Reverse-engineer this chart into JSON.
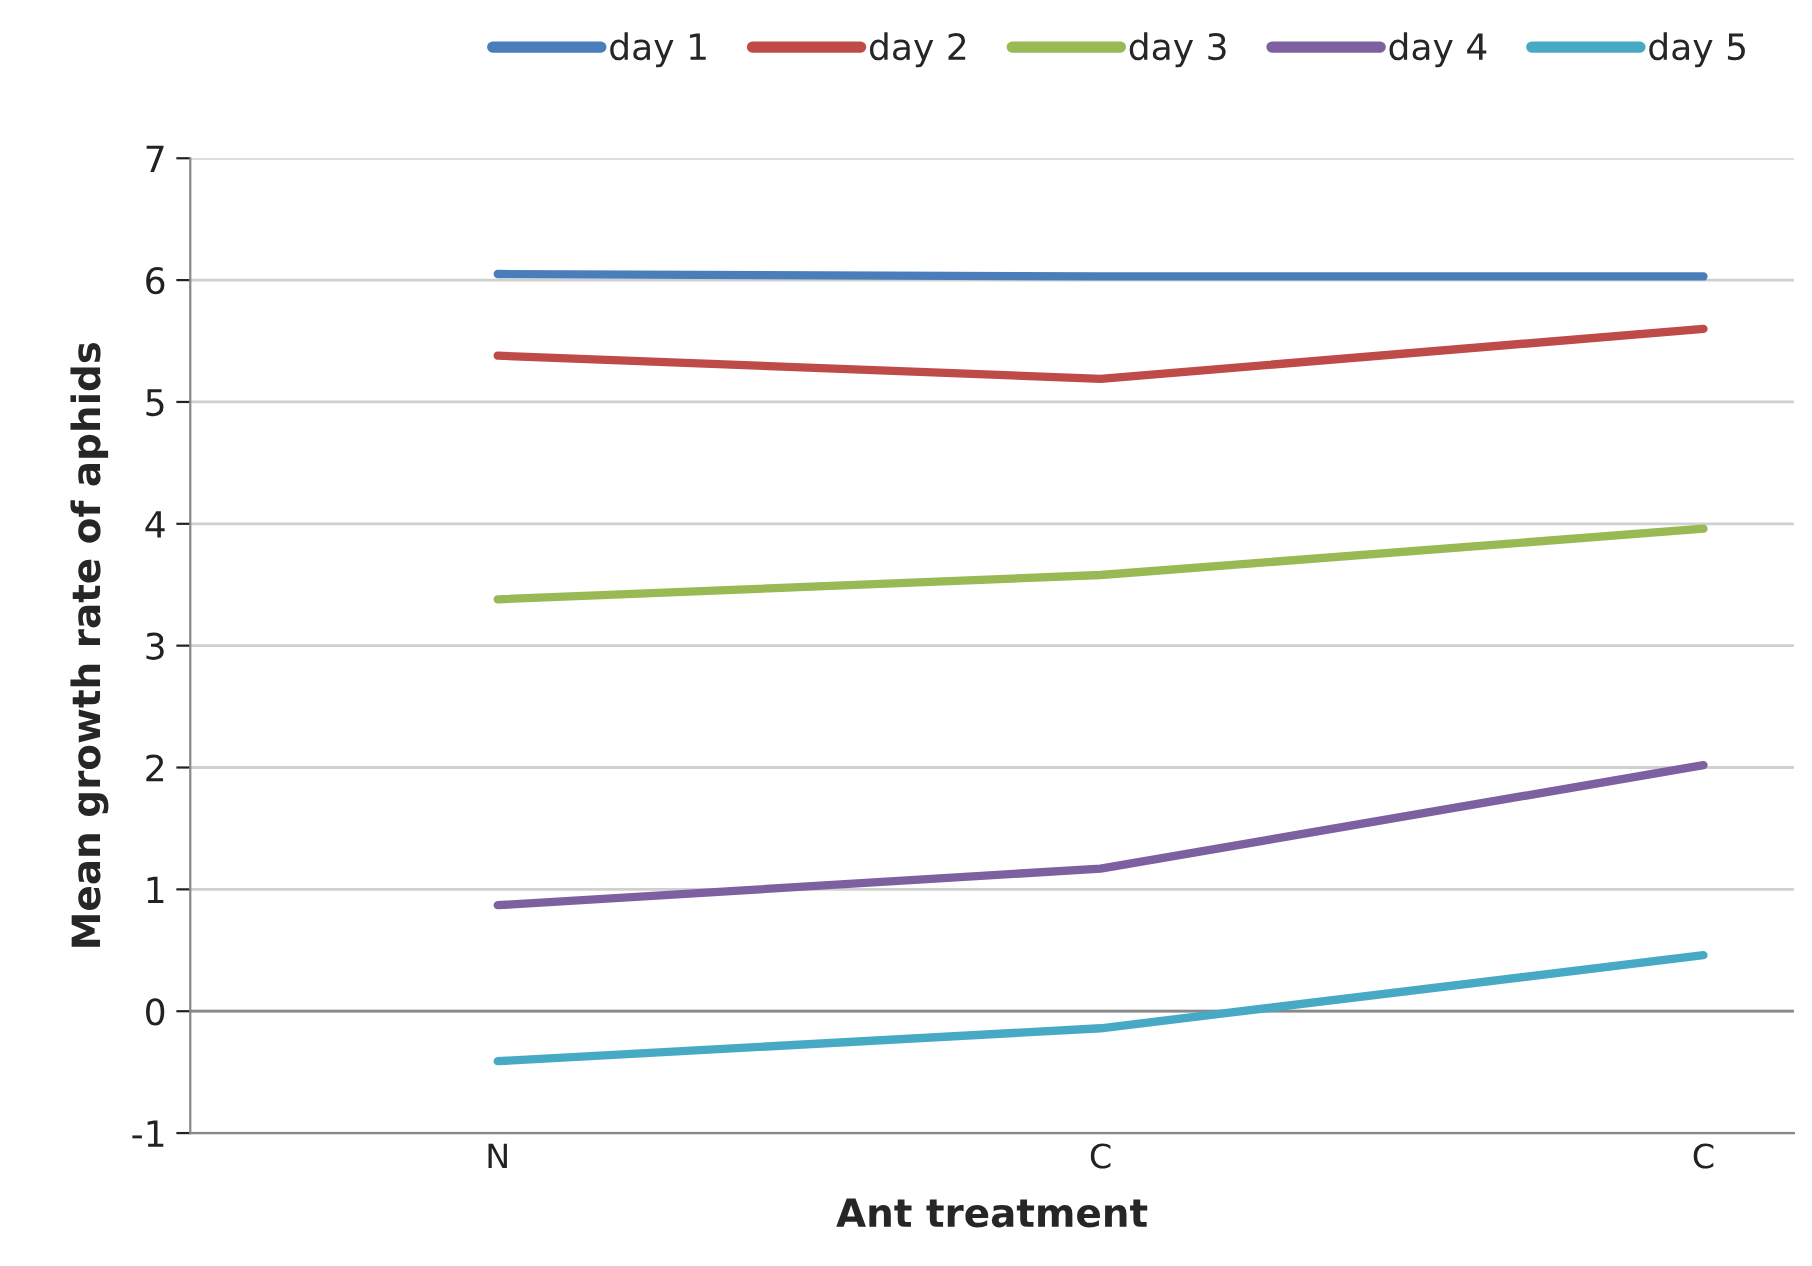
{
  "chart_data": {
    "type": "line",
    "xlabel": "Ant treatment",
    "ylabel": "Mean growth rate of aphids",
    "categories": [
      "N",
      "C",
      "C"
    ],
    "series": [
      {
        "name": "day 1",
        "color": "#4a7ebb",
        "values": [
          6.05,
          6.03,
          6.03
        ]
      },
      {
        "name": "day 2",
        "color": "#be4b48",
        "values": [
          5.38,
          5.19,
          5.6
        ]
      },
      {
        "name": "day 3",
        "color": "#98b954",
        "values": [
          3.38,
          3.58,
          3.96
        ]
      },
      {
        "name": "day 4",
        "color": "#7d60a0",
        "values": [
          0.87,
          1.17,
          2.02
        ]
      },
      {
        "name": "day 5",
        "color": "#46aac5",
        "values": [
          -0.41,
          -0.14,
          0.46
        ]
      }
    ],
    "ylim": [
      -1,
      7
    ],
    "yticks": [
      -1,
      0,
      1,
      2,
      3,
      4,
      5,
      6,
      7
    ],
    "grid": "y",
    "legend": "top",
    "marker": "none",
    "line_style": "solid"
  }
}
